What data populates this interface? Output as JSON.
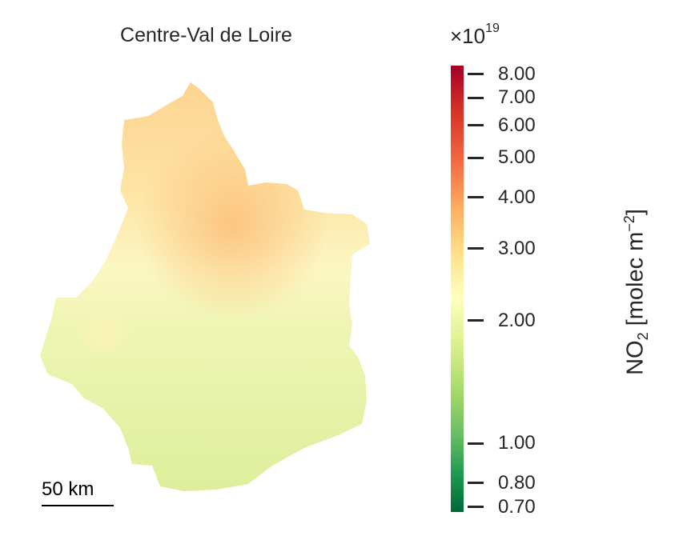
{
  "map": {
    "title": "Centre-Val de Loire",
    "scalebar_label": "50 km"
  },
  "colorbar": {
    "multiplier_base": "×10",
    "multiplier_exp": "19",
    "label_main": "NO",
    "label_sub": "2",
    "label_units": " [molec m",
    "label_exp": "−2",
    "label_close": "]",
    "scale": "log",
    "range": [
      0.68,
      8.4
    ],
    "colormap": "RdYlGn_r",
    "ticks": [
      {
        "value": 8.0,
        "label": "8.00"
      },
      {
        "value": 7.0,
        "label": "7.00"
      },
      {
        "value": 6.0,
        "label": "6.00"
      },
      {
        "value": 5.0,
        "label": "5.00"
      },
      {
        "value": 4.0,
        "label": "4.00"
      },
      {
        "value": 3.0,
        "label": "3.00"
      },
      {
        "value": 2.0,
        "label": "2.00"
      },
      {
        "value": 1.0,
        "label": "1.00"
      },
      {
        "value": 0.8,
        "label": "0.80"
      },
      {
        "value": 0.7,
        "label": "0.70"
      }
    ]
  },
  "colors": {
    "north_high": "#fdbf71",
    "center": "#ffffbf",
    "south_low": "#dcee98",
    "scalebar": "#000000"
  }
}
